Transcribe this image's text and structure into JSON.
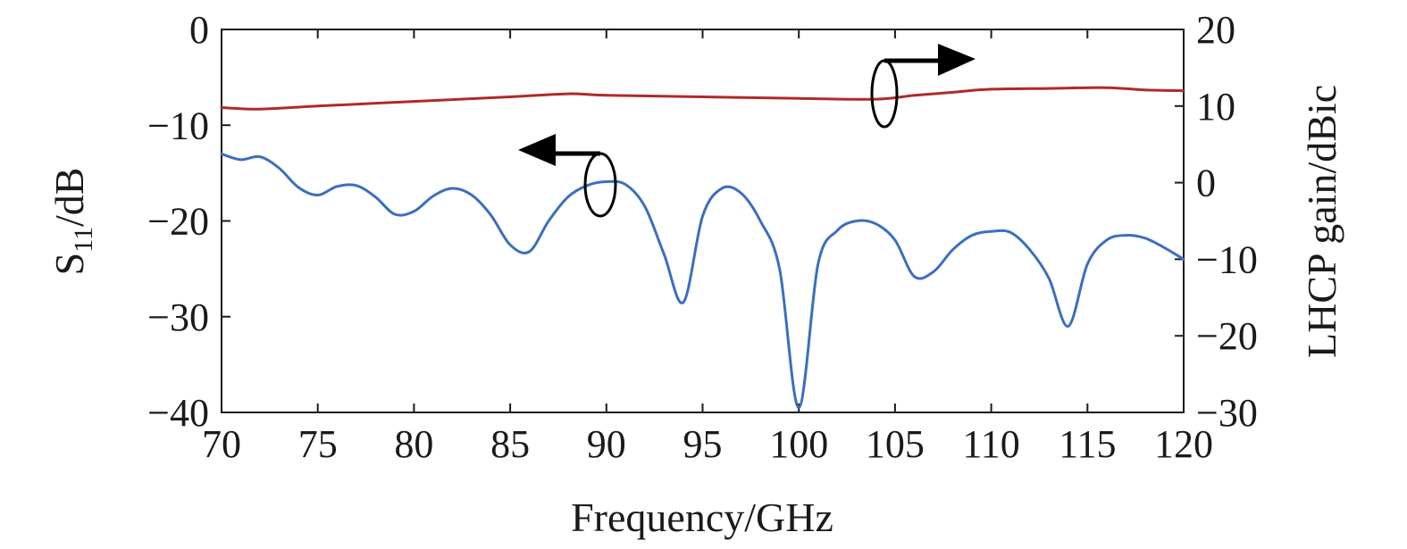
{
  "chart_data": {
    "type": "line",
    "xlabel": "Frequency/GHz",
    "ylabel_left_main": "S",
    "ylabel_left_sub": "11",
    "ylabel_left_rest": "/dB",
    "ylabel_right": "LHCP gain/dBic",
    "xlim": [
      70,
      120
    ],
    "ylim_left": [
      -40,
      0
    ],
    "ylim_right": [
      -30,
      20
    ],
    "x_ticks": [
      "70",
      "75",
      "80",
      "85",
      "90",
      "95",
      "100",
      "105",
      "110",
      "115",
      "120"
    ],
    "y_left_ticks": [
      "0",
      "−10",
      "−20",
      "−30",
      "−40"
    ],
    "y_right_ticks": [
      "20",
      "10",
      "0",
      "−10",
      "−20",
      "−30"
    ],
    "grid": false,
    "series": [
      {
        "axis": "left",
        "color": "#3a6fbf",
        "x": [
          70,
          71,
          72,
          73,
          74,
          75,
          76,
          77,
          78,
          79,
          80,
          81,
          82,
          83,
          84,
          85,
          86,
          87,
          88,
          89,
          90,
          91,
          92,
          93,
          94,
          95,
          96,
          97,
          98,
          99,
          100,
          101,
          102,
          103,
          104,
          105,
          106,
          107,
          108,
          109,
          110,
          111,
          112,
          113,
          114,
          115,
          116,
          117,
          118,
          119,
          120
        ],
        "values": [
          -13.0,
          -13.6,
          -13.3,
          -14.5,
          -16.5,
          -17.3,
          -16.4,
          -16.3,
          -17.5,
          -19.3,
          -19.0,
          -17.4,
          -16.6,
          -17.3,
          -19.4,
          -22.5,
          -23.2,
          -20.0,
          -17.5,
          -16.3,
          -15.9,
          -16.2,
          -18.5,
          -23.5,
          -28.5,
          -19.5,
          -16.6,
          -17.1,
          -20.0,
          -25.0,
          -39.5,
          -24.5,
          -21.0,
          -20.0,
          -20.3,
          -22.0,
          -25.8,
          -25.3,
          -23.0,
          -21.5,
          -21.1,
          -21.2,
          -23.0,
          -26.0,
          -31.0,
          -24.5,
          -22.0,
          -21.5,
          -21.8,
          -22.8,
          -24.0
        ]
      },
      {
        "axis": "right",
        "color": "#b02a2a",
        "x": [
          70,
          72,
          75,
          80,
          85,
          88,
          90,
          95,
          100,
          104,
          106,
          108,
          110,
          113,
          116,
          118,
          120
        ],
        "values": [
          9.8,
          9.6,
          10.0,
          10.6,
          11.2,
          11.6,
          11.4,
          11.2,
          11.0,
          10.9,
          11.4,
          11.8,
          12.2,
          12.3,
          12.4,
          12.1,
          12.0
        ]
      }
    ]
  }
}
